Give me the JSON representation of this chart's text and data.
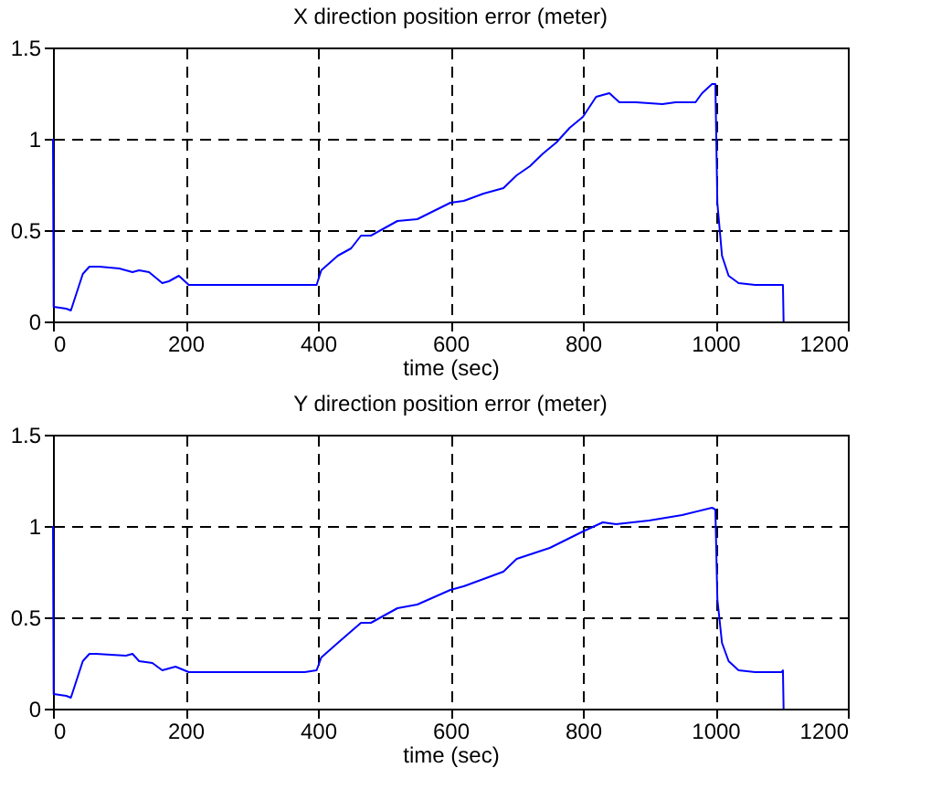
{
  "chart_data": [
    {
      "type": "line",
      "title": "X direction position error (meter)",
      "xlabel": "time (sec)",
      "xlim": [
        0,
        1200
      ],
      "xticks": [
        0,
        200,
        400,
        600,
        800,
        1000,
        1200
      ],
      "ylim": [
        0,
        1.5
      ],
      "yticks": [
        0,
        0.5,
        1,
        1.5
      ],
      "grid": true,
      "line_style": "solid",
      "series": [
        {
          "color": "#0000ff",
          "x": [
            0,
            1,
            20,
            27,
            45,
            55,
            70,
            100,
            120,
            130,
            145,
            165,
            175,
            190,
            205,
            270,
            300,
            340,
            380,
            398,
            405,
            430,
            450,
            465,
            480,
            500,
            520,
            550,
            600,
            620,
            650,
            680,
            700,
            720,
            740,
            760,
            780,
            800,
            820,
            840,
            855,
            880,
            920,
            940,
            970,
            980,
            995,
            1000,
            1003,
            1010,
            1020,
            1035,
            1060,
            1100,
            1102,
            1103
          ],
          "values": [
            1.0,
            0.08,
            0.07,
            0.06,
            0.26,
            0.3,
            0.3,
            0.29,
            0.27,
            0.28,
            0.27,
            0.21,
            0.22,
            0.25,
            0.2,
            0.2,
            0.2,
            0.2,
            0.2,
            0.2,
            0.28,
            0.36,
            0.4,
            0.47,
            0.47,
            0.51,
            0.55,
            0.56,
            0.65,
            0.66,
            0.7,
            0.73,
            0.8,
            0.85,
            0.92,
            0.98,
            1.06,
            1.12,
            1.23,
            1.25,
            1.2,
            1.2,
            1.19,
            1.2,
            1.2,
            1.25,
            1.3,
            1.3,
            0.65,
            0.36,
            0.25,
            0.21,
            0.2,
            0.2,
            0.2,
            0
          ]
        }
      ]
    },
    {
      "type": "line",
      "title": "Y direction position error (meter)",
      "xlabel": "time (sec)",
      "xlim": [
        0,
        1200
      ],
      "xticks": [
        0,
        200,
        400,
        600,
        800,
        1000,
        1200
      ],
      "ylim": [
        0,
        1.5
      ],
      "yticks": [
        0,
        0.5,
        1,
        1.5
      ],
      "grid": true,
      "line_style": "solid",
      "series": [
        {
          "color": "#0000ff",
          "x": [
            0,
            1,
            20,
            27,
            45,
            55,
            65,
            110,
            120,
            130,
            150,
            165,
            185,
            205,
            300,
            380,
            398,
            405,
            430,
            465,
            480,
            520,
            550,
            600,
            620,
            680,
            700,
            750,
            800,
            830,
            850,
            900,
            950,
            995,
            1000,
            1003,
            1010,
            1020,
            1035,
            1060,
            1100,
            1102,
            1103
          ],
          "values": [
            1.0,
            0.08,
            0.07,
            0.06,
            0.26,
            0.3,
            0.3,
            0.29,
            0.3,
            0.26,
            0.25,
            0.21,
            0.23,
            0.2,
            0.2,
            0.2,
            0.21,
            0.28,
            0.36,
            0.47,
            0.47,
            0.55,
            0.57,
            0.65,
            0.67,
            0.75,
            0.82,
            0.88,
            0.97,
            1.02,
            1.01,
            1.03,
            1.06,
            1.1,
            1.09,
            0.6,
            0.36,
            0.26,
            0.21,
            0.2,
            0.2,
            0.21,
            0
          ]
        }
      ]
    }
  ]
}
